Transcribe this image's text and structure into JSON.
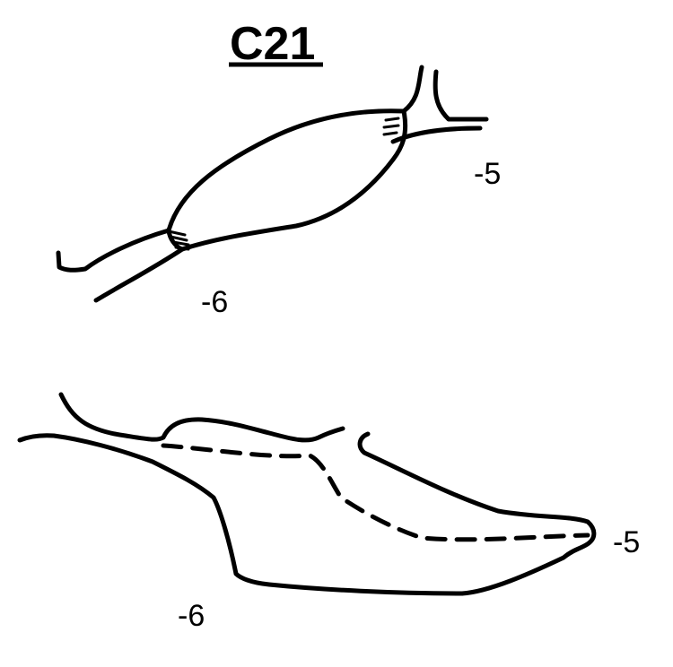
{
  "title": "C21",
  "top_drawing": {
    "label_right": "-5",
    "label_left": "-6"
  },
  "bottom_drawing": {
    "label_right": "-5",
    "label_left": "-6"
  },
  "colors": {
    "ink": "#000000",
    "background": "#ffffff"
  }
}
